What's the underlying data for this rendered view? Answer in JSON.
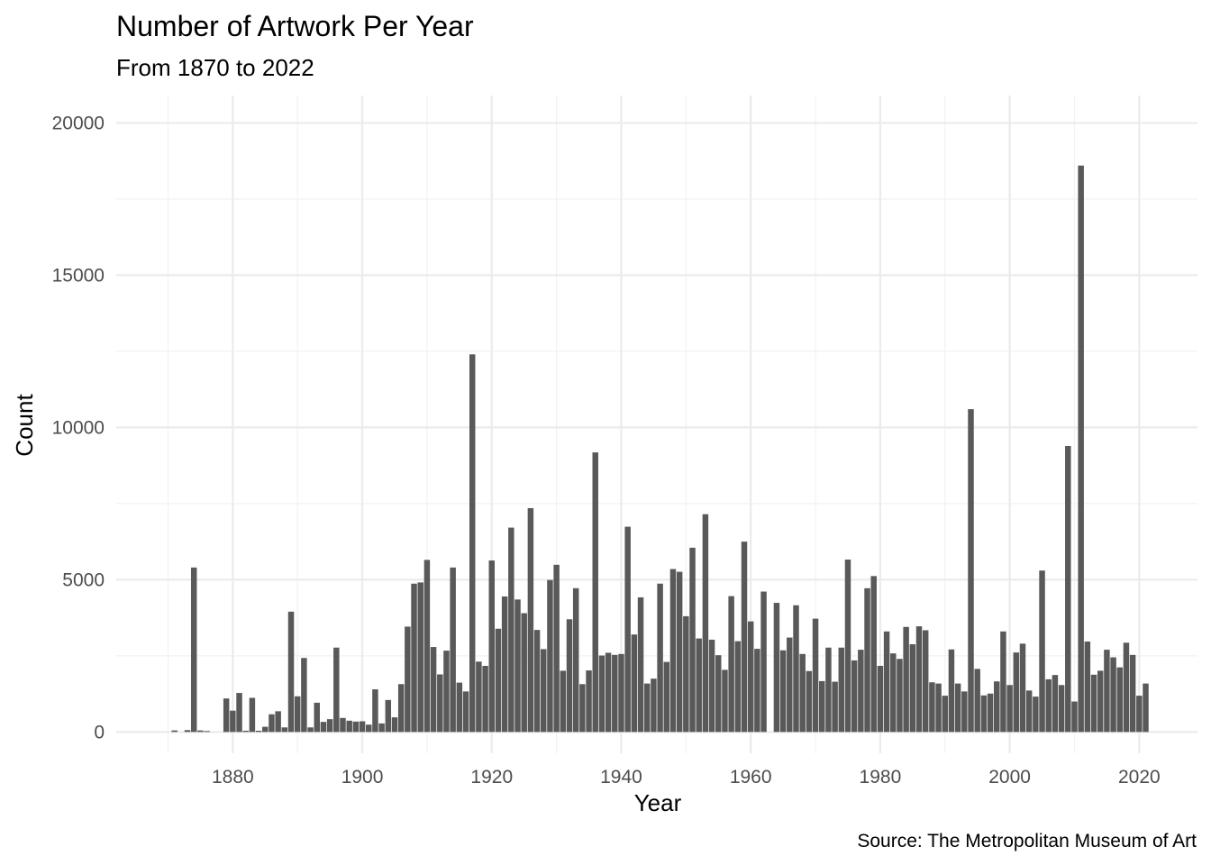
{
  "chart_data": {
    "type": "bar",
    "title": "Number of Artwork Per Year",
    "subtitle": "From 1870 to 2022",
    "xlabel": "Year",
    "ylabel": "Count",
    "caption": "Source: The Metropolitan Museum of Art",
    "xlim": [
      1862,
      2029
    ],
    "ylim": [
      -700,
      20900
    ],
    "x_ticks": [
      1880,
      1900,
      1920,
      1940,
      1960,
      1980,
      2000,
      2020
    ],
    "y_ticks": [
      0,
      5000,
      10000,
      15000,
      20000
    ],
    "grid": true,
    "colors": {
      "bar": "#595959",
      "grid": "#ebebeb",
      "tick_label": "#4d4d4d"
    },
    "x": [
      1871,
      1872,
      1873,
      1874,
      1875,
      1876,
      1877,
      1878,
      1879,
      1880,
      1881,
      1882,
      1883,
      1884,
      1885,
      1886,
      1887,
      1888,
      1889,
      1890,
      1891,
      1892,
      1893,
      1894,
      1895,
      1896,
      1897,
      1898,
      1899,
      1900,
      1901,
      1902,
      1903,
      1904,
      1905,
      1906,
      1907,
      1908,
      1909,
      1910,
      1911,
      1912,
      1913,
      1914,
      1915,
      1916,
      1917,
      1918,
      1919,
      1920,
      1921,
      1922,
      1923,
      1924,
      1925,
      1926,
      1927,
      1928,
      1929,
      1930,
      1931,
      1932,
      1933,
      1934,
      1935,
      1936,
      1937,
      1938,
      1939,
      1940,
      1941,
      1942,
      1943,
      1944,
      1945,
      1946,
      1947,
      1948,
      1949,
      1950,
      1951,
      1952,
      1953,
      1954,
      1955,
      1956,
      1957,
      1958,
      1959,
      1960,
      1961,
      1962,
      1963,
      1964,
      1965,
      1966,
      1967,
      1968,
      1969,
      1970,
      1971,
      1972,
      1973,
      1974,
      1975,
      1976,
      1977,
      1978,
      1979,
      1980,
      1981,
      1982,
      1983,
      1984,
      1985,
      1986,
      1987,
      1988,
      1989,
      1990,
      1991,
      1992,
      1993,
      1994,
      1995,
      1996,
      1997,
      1998,
      1999,
      2000,
      2001,
      2002,
      2003,
      2004,
      2005,
      2006,
      2007,
      2008,
      2009,
      2010,
      2011,
      2012,
      2013,
      2014,
      2015,
      2016,
      2017,
      2018,
      2019,
      2020,
      2021
    ],
    "values": [
      50,
      0,
      60,
      5400,
      50,
      30,
      0,
      0,
      1100,
      700,
      1280,
      40,
      1120,
      40,
      170,
      580,
      680,
      150,
      3950,
      1170,
      2430,
      150,
      960,
      330,
      420,
      2770,
      460,
      370,
      340,
      350,
      240,
      1400,
      280,
      1050,
      480,
      1570,
      3460,
      4870,
      4910,
      5650,
      2790,
      1890,
      2670,
      5400,
      1620,
      1330,
      12400,
      2310,
      2170,
      5630,
      3390,
      4450,
      6710,
      4350,
      3900,
      7350,
      3350,
      2720,
      4990,
      5490,
      2010,
      3700,
      4720,
      1570,
      2020,
      9180,
      2510,
      2600,
      2530,
      2560,
      6740,
      3200,
      4420,
      1590,
      1750,
      4870,
      2300,
      5350,
      5260,
      3800,
      6050,
      3070,
      7150,
      3030,
      2520,
      2040,
      4460,
      2980,
      6250,
      3630,
      2730,
      4610,
      0,
      4240,
      2680,
      3100,
      4160,
      2560,
      2000,
      3720,
      1670,
      2770,
      1650,
      2770,
      5660,
      2350,
      2700,
      4720,
      5120,
      2170,
      3300,
      2580,
      2400,
      3450,
      2880,
      3470,
      3340,
      1630,
      1590,
      1190,
      2710,
      1590,
      1330,
      10600,
      2070,
      1200,
      1260,
      1660,
      3300,
      1540,
      2610,
      2900,
      1360,
      1160,
      5300,
      1730,
      1870,
      1540,
      9390,
      1000,
      18600,
      2970,
      1880,
      2010,
      2700,
      2450,
      2120,
      2930,
      2530,
      1190,
      1590
    ]
  }
}
